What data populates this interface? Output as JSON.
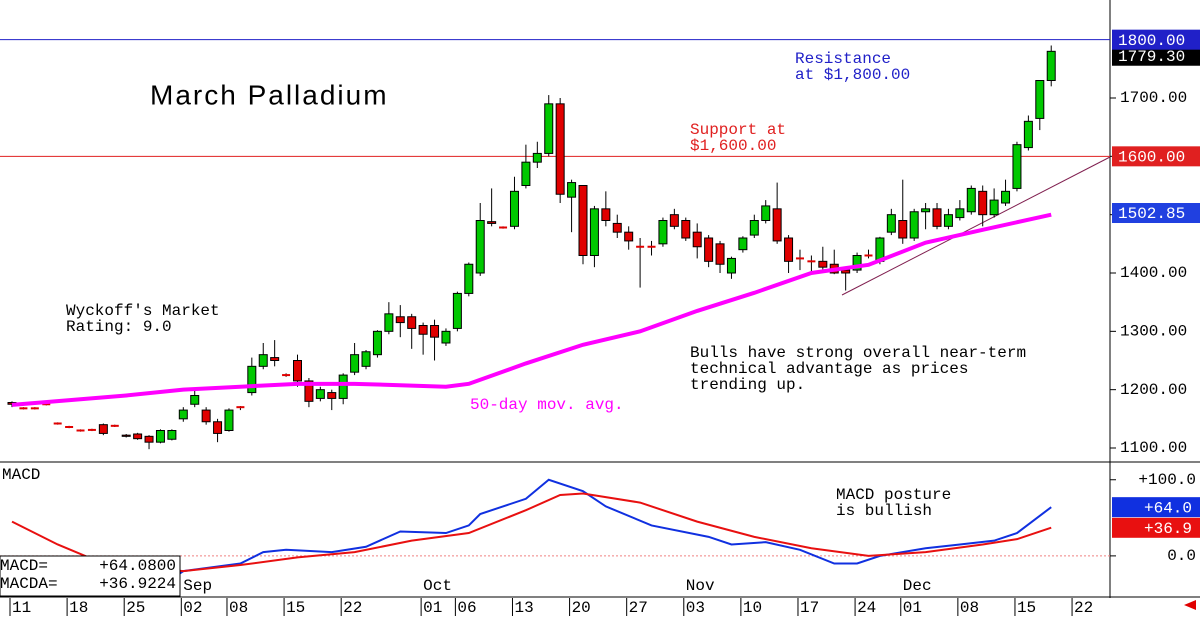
{
  "chart_data": [
    {
      "type": "candlestick",
      "title": "March Palladium",
      "up_color": "#00c800",
      "down_color": "#e00000",
      "candles": [
        [
          1178,
          1180,
          1170,
          1175
        ],
        [
          1168,
          1170,
          1166,
          1168
        ],
        [
          1168,
          1170,
          1166,
          1168
        ],
        [
          1175,
          1177,
          1173,
          1175
        ],
        [
          1142,
          1144,
          1140,
          1142
        ],
        [
          1136,
          1138,
          1134,
          1136
        ],
        [
          1130,
          1132,
          1128,
          1130
        ],
        [
          1131,
          1133,
          1129,
          1131
        ],
        [
          1140,
          1142,
          1122,
          1125
        ],
        [
          1138,
          1140,
          1136,
          1138
        ],
        [
          1122,
          1124,
          1118,
          1120
        ],
        [
          1124,
          1126,
          1114,
          1116
        ],
        [
          1120,
          1122,
          1098,
          1110
        ],
        [
          1110,
          1132,
          1108,
          1130
        ],
        [
          1115,
          1132,
          1113,
          1130
        ],
        [
          1150,
          1170,
          1145,
          1165
        ],
        [
          1175,
          1200,
          1170,
          1190
        ],
        [
          1165,
          1170,
          1140,
          1145
        ],
        [
          1145,
          1150,
          1110,
          1125
        ],
        [
          1130,
          1168,
          1128,
          1165
        ],
        [
          1170,
          1172,
          1165,
          1170
        ],
        [
          1195,
          1255,
          1190,
          1240
        ],
        [
          1240,
          1280,
          1235,
          1260
        ],
        [
          1255,
          1285,
          1240,
          1250
        ],
        [
          1225,
          1228,
          1222,
          1225
        ],
        [
          1250,
          1260,
          1205,
          1215
        ],
        [
          1215,
          1220,
          1170,
          1180
        ],
        [
          1185,
          1205,
          1180,
          1200
        ],
        [
          1195,
          1200,
          1165,
          1185
        ],
        [
          1185,
          1228,
          1175,
          1225
        ],
        [
          1230,
          1280,
          1225,
          1260
        ],
        [
          1240,
          1268,
          1235,
          1265
        ],
        [
          1260,
          1302,
          1255,
          1300
        ],
        [
          1300,
          1350,
          1295,
          1330
        ],
        [
          1325,
          1345,
          1290,
          1315
        ],
        [
          1325,
          1330,
          1270,
          1305
        ],
        [
          1310,
          1315,
          1260,
          1295
        ],
        [
          1310,
          1320,
          1250,
          1290
        ],
        [
          1280,
          1305,
          1275,
          1300
        ],
        [
          1305,
          1368,
          1300,
          1365
        ],
        [
          1365,
          1418,
          1360,
          1415
        ],
        [
          1400,
          1520,
          1395,
          1490
        ],
        [
          1488,
          1545,
          1480,
          1485
        ],
        [
          1478,
          1480,
          1476,
          1478
        ],
        [
          1480,
          1565,
          1475,
          1540
        ],
        [
          1550,
          1620,
          1545,
          1590
        ],
        [
          1590,
          1625,
          1580,
          1605
        ],
        [
          1605,
          1705,
          1600,
          1690
        ],
        [
          1690,
          1700,
          1520,
          1535
        ],
        [
          1530,
          1560,
          1470,
          1555
        ],
        [
          1550,
          1550,
          1415,
          1430
        ],
        [
          1430,
          1515,
          1410,
          1510
        ],
        [
          1510,
          1540,
          1480,
          1490
        ],
        [
          1485,
          1500,
          1460,
          1470
        ],
        [
          1470,
          1480,
          1440,
          1455
        ],
        [
          1445,
          1460,
          1375,
          1445
        ],
        [
          1445,
          1455,
          1430,
          1445
        ],
        [
          1450,
          1495,
          1445,
          1490
        ],
        [
          1500,
          1510,
          1475,
          1480
        ],
        [
          1490,
          1495,
          1455,
          1460
        ],
        [
          1470,
          1485,
          1425,
          1445
        ],
        [
          1460,
          1465,
          1410,
          1420
        ],
        [
          1450,
          1455,
          1400,
          1415
        ],
        [
          1400,
          1428,
          1390,
          1425
        ],
        [
          1440,
          1463,
          1435,
          1460
        ],
        [
          1465,
          1500,
          1460,
          1490
        ],
        [
          1490,
          1525,
          1485,
          1515
        ],
        [
          1510,
          1555,
          1450,
          1455
        ],
        [
          1460,
          1465,
          1400,
          1420
        ],
        [
          1425,
          1440,
          1405,
          1425
        ],
        [
          1420,
          1430,
          1400,
          1420
        ],
        [
          1420,
          1445,
          1400,
          1410
        ],
        [
          1415,
          1440,
          1398,
          1400
        ],
        [
          1405,
          1410,
          1370,
          1400
        ],
        [
          1405,
          1435,
          1400,
          1430
        ],
        [
          1430,
          1440,
          1425,
          1430
        ],
        [
          1420,
          1462,
          1415,
          1460
        ],
        [
          1470,
          1510,
          1465,
          1500
        ],
        [
          1490,
          1560,
          1450,
          1460
        ],
        [
          1460,
          1510,
          1455,
          1505
        ],
        [
          1505,
          1520,
          1475,
          1510
        ],
        [
          1510,
          1520,
          1475,
          1480
        ],
        [
          1480,
          1510,
          1475,
          1500
        ],
        [
          1495,
          1525,
          1490,
          1510
        ],
        [
          1505,
          1550,
          1500,
          1545
        ],
        [
          1540,
          1550,
          1480,
          1500
        ],
        [
          1500,
          1545,
          1495,
          1525
        ],
        [
          1520,
          1560,
          1515,
          1540
        ],
        [
          1545,
          1625,
          1540,
          1620
        ],
        [
          1615,
          1670,
          1610,
          1660
        ],
        [
          1665,
          1730,
          1645,
          1730
        ],
        [
          1730,
          1790,
          1720,
          1780
        ]
      ],
      "ma_name": "50-day mov. avg.",
      "ma_color": "#ff00ff",
      "ma_x": [
        0,
        10,
        15,
        20,
        25,
        30,
        35,
        38,
        40,
        45,
        50,
        55,
        60,
        65,
        70,
        75,
        80,
        85,
        91
      ],
      "ma_values": [
        1174,
        1190,
        1200,
        1205,
        1210,
        1210,
        1207,
        1205,
        1210,
        1245,
        1277,
        1300,
        1335,
        1366,
        1400,
        1414,
        1452,
        1474,
        1500
      ],
      "ylim": [
        1076,
        1868
      ],
      "yticks": [
        {
          "value": 1100,
          "label": "1100.00"
        },
        {
          "value": 1200,
          "label": "1200.00"
        },
        {
          "value": 1300,
          "label": "1300.00"
        },
        {
          "value": 1400,
          "label": "1400.00"
        },
        {
          "value": 1500,
          "label": "1500.00"
        },
        {
          "value": 1600,
          "label": "1600.00"
        },
        {
          "value": 1700,
          "label": "1700.00"
        }
      ],
      "resistance": {
        "value": 1800,
        "label": "1800.00",
        "color": "#2020c8"
      },
      "support": {
        "value": 1600,
        "label": "1600.00",
        "color": "#e02020"
      },
      "last": {
        "value": 1779.3,
        "label": "1779.30"
      },
      "ma_last": {
        "value": 1502.85,
        "label": "1502.85"
      },
      "annotations": {
        "resistance": [
          "Resistance",
          "at $1,800.00"
        ],
        "support": [
          "Support at",
          "$1,600.00"
        ],
        "rating": [
          "Wyckoff's Market",
          "Rating: 9.0"
        ],
        "bulls": [
          "Bulls have strong overall near-term",
          "technical advantage as prices",
          "trending up."
        ]
      }
    },
    {
      "type": "line",
      "title": "MACD",
      "series": [
        {
          "name": "MACD",
          "color": "#1030e0",
          "x": [
            13,
            15,
            20,
            22,
            24,
            28,
            31,
            34,
            38,
            40,
            41,
            45,
            47,
            50,
            52,
            56,
            61,
            63,
            66,
            69,
            72,
            74,
            76,
            80,
            83,
            86,
            88,
            91
          ],
          "values": [
            -40,
            -20,
            -10,
            5,
            8,
            5,
            12,
            32,
            30,
            40,
            55,
            75,
            100,
            85,
            65,
            40,
            25,
            15,
            18,
            8,
            -10,
            -10,
            0,
            10,
            15,
            20,
            30,
            64
          ]
        },
        {
          "name": "MACDA",
          "color": "#e81010",
          "x": [
            0,
            4,
            8,
            15,
            20,
            25,
            30,
            35,
            40,
            45,
            48,
            50,
            55,
            60,
            65,
            70,
            75,
            80,
            85,
            88,
            91
          ],
          "values": [
            45,
            15,
            -10,
            -20,
            -12,
            -2,
            5,
            20,
            30,
            60,
            80,
            82,
            70,
            45,
            25,
            10,
            0,
            5,
            15,
            22,
            37
          ]
        }
      ],
      "ylim": [
        -54,
        122
      ],
      "yticks": [
        {
          "value": 0,
          "label": "0.0"
        },
        {
          "value": 100,
          "label": "+100.0"
        }
      ],
      "last_tags": [
        {
          "value": 64.0,
          "label": "+64.0"
        },
        {
          "value": 36.9,
          "label": "+36.9"
        }
      ],
      "readout": [
        {
          "name": "MACD=",
          "value": "+64.0800"
        },
        {
          "name": "MACDA=",
          "value": "+36.9224"
        }
      ],
      "annotation": [
        "MACD posture",
        "is bullish"
      ]
    },
    {
      "type": "date_axis",
      "xticks": [
        {
          "value": 0,
          "label": "11"
        },
        {
          "value": 5,
          "label": "18"
        },
        {
          "value": 10,
          "label": "25"
        },
        {
          "value": 15,
          "label": "02"
        },
        {
          "value": 19,
          "label": "08"
        },
        {
          "value": 24,
          "label": "15"
        },
        {
          "value": 29,
          "label": "22"
        },
        {
          "value": 36,
          "label": "01"
        },
        {
          "value": 39,
          "label": "06"
        },
        {
          "value": 44,
          "label": "13"
        },
        {
          "value": 49,
          "label": "20"
        },
        {
          "value": 54,
          "label": "27"
        },
        {
          "value": 59,
          "label": "03"
        },
        {
          "value": 64,
          "label": "10"
        },
        {
          "value": 69,
          "label": "17"
        },
        {
          "value": 74,
          "label": "24"
        },
        {
          "value": 78,
          "label": "01"
        },
        {
          "value": 83,
          "label": "08"
        },
        {
          "value": 88,
          "label": "15"
        },
        {
          "value": 93,
          "label": "22"
        }
      ],
      "months": [
        {
          "value": 15,
          "label": "Sep"
        },
        {
          "value": 36,
          "label": "Oct"
        },
        {
          "value": 59,
          "label": "Nov"
        },
        {
          "value": 78,
          "label": "Dec"
        }
      ]
    }
  ]
}
